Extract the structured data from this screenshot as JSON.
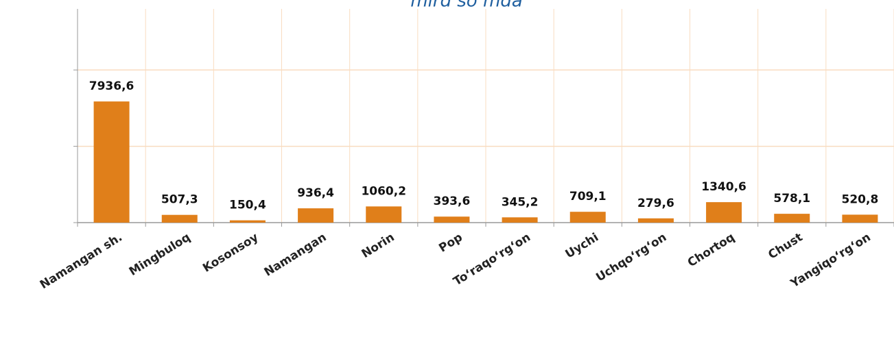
{
  "chart_data": {
    "type": "bar",
    "title": "mlrd so‘mda",
    "categories": [
      "Namangan sh.",
      "Mingbuloq",
      "Kosonsoy",
      "Namangan",
      "Norin",
      "Pop",
      "To‘raqo‘rg‘on",
      "Uychi",
      "Uchqo‘rg‘on",
      "Chortoq",
      "Chust",
      "Yangiqo‘rg‘on"
    ],
    "values": [
      7936.6,
      507.3,
      150.4,
      936.4,
      1060.2,
      393.6,
      345.2,
      709.1,
      279.6,
      1340.6,
      578.1,
      520.8
    ],
    "value_labels": [
      "7936,6",
      "507,3",
      "150,4",
      "936,4",
      "1060,2",
      "393,6",
      "345,2",
      "709,1",
      "279,6",
      "1340,6",
      "578,1",
      "520,8"
    ],
    "color": "#e07f1a",
    "ylim": [
      0,
      14000
    ],
    "yticks": [
      0,
      5000,
      10000
    ],
    "grid": true
  }
}
